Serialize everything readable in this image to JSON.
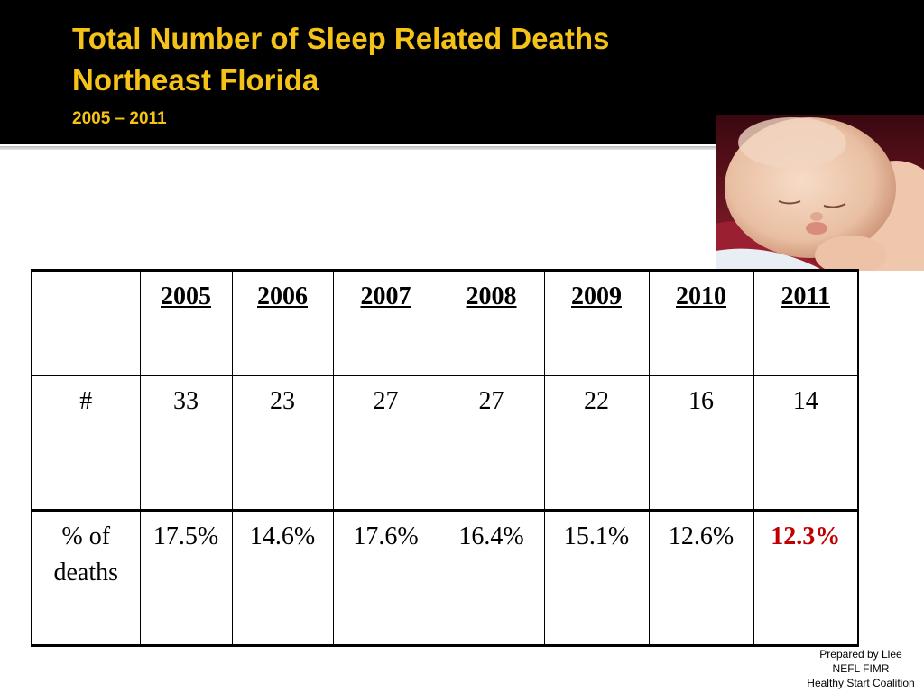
{
  "header": {
    "title_lines": [
      "Total Number of Sleep Related Deaths",
      "Northeast Florida"
    ],
    "subtitle": "2005 – 2011",
    "accent_color": "#f5c218",
    "background_color": "#000000"
  },
  "photo": {
    "description_icon": "sleeping-baby-photo"
  },
  "table": {
    "corner": "",
    "years": [
      "2005",
      "2006",
      "2007",
      "2008",
      "2009",
      "2010",
      "2011"
    ],
    "rows": [
      {
        "label": "#",
        "values": [
          "33",
          "23",
          "27",
          "27",
          "22",
          "16",
          "14"
        ]
      },
      {
        "label_lines": [
          "% of",
          "deaths"
        ],
        "values": [
          "17.5%",
          "14.6%",
          "17.6%",
          "16.4%",
          "15.1%",
          "12.6%",
          "12.3%"
        ],
        "highlight_color": "#c00000"
      }
    ]
  },
  "credit": {
    "lines": [
      "Prepared by Llee",
      "NEFL FIMR",
      "Healthy Start Coalition"
    ]
  }
}
